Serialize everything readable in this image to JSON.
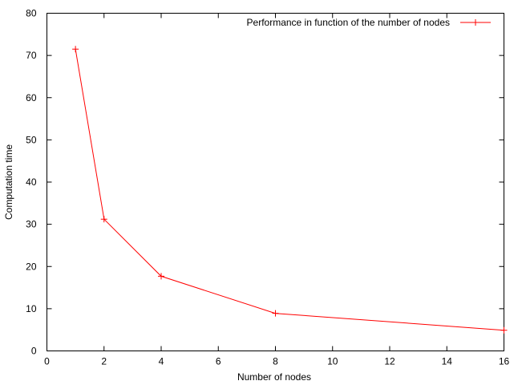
{
  "chart_data": {
    "type": "line",
    "title": "",
    "xlabel": "Number of nodes",
    "ylabel": "Computation time",
    "xlim": [
      0,
      16
    ],
    "ylim": [
      0,
      80
    ],
    "x_ticks": [
      0,
      2,
      4,
      6,
      8,
      10,
      12,
      14,
      16
    ],
    "y_ticks": [
      0,
      10,
      20,
      30,
      40,
      50,
      60,
      70,
      80
    ],
    "x_tick_labels": [
      "0",
      "2",
      "4",
      "6",
      "8",
      "10",
      "12",
      "14",
      "16"
    ],
    "y_tick_labels": [
      "0",
      "10",
      "20",
      "30",
      "40",
      "50",
      "60",
      "70",
      "80"
    ],
    "grid": false,
    "legend_position": "top-right",
    "series": [
      {
        "name": "Performance in function of the number of nodes",
        "color": "#ff0000",
        "marker": "plus",
        "x": [
          1,
          2,
          4,
          8,
          16
        ],
        "y": [
          71.5,
          31.2,
          17.7,
          8.9,
          4.9
        ]
      }
    ]
  }
}
